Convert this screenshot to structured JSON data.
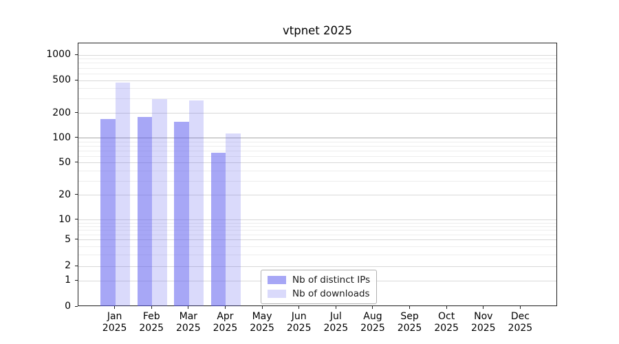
{
  "chart_data": {
    "type": "bar",
    "title": "vtpnet 2025",
    "categories": [
      "Jan",
      "Feb",
      "Mar",
      "Apr",
      "May",
      "Jun",
      "Jul",
      "Aug",
      "Sep",
      "Oct",
      "Nov",
      "Dec"
    ],
    "category_year": "2025",
    "series": [
      {
        "name": "Nb of distinct IPs",
        "color": "rgba(88,88,238,0.53)",
        "color_hex_on_white": "#a8a8f5",
        "values": [
          172,
          180,
          160,
          67,
          0,
          0,
          0,
          0,
          0,
          0,
          0,
          0
        ]
      },
      {
        "name": "Nb of downloads",
        "color": "rgba(88,88,238,0.22)",
        "color_hex_on_white": "#dadaf9",
        "values": [
          470,
          300,
          290,
          115,
          0,
          0,
          0,
          0,
          0,
          0,
          0,
          0
        ]
      }
    ],
    "yscale": "symlog",
    "yticks": [
      0,
      1,
      2,
      5,
      10,
      20,
      50,
      100,
      200,
      500,
      1000
    ],
    "minor_yticks": [
      3,
      4,
      6,
      7,
      8,
      9,
      30,
      40,
      60,
      70,
      80,
      90,
      300,
      400,
      600,
      700,
      800,
      900
    ],
    "ylim": [
      0,
      1400
    ],
    "grid": true,
    "highlight_gridline_value": 100,
    "legend_position": "lower center",
    "xlabel": "",
    "ylabel": ""
  }
}
